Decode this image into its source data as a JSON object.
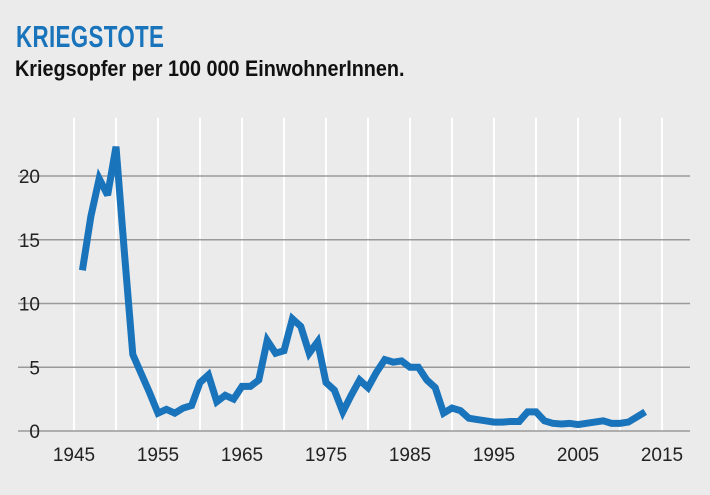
{
  "chart_data": {
    "type": "line",
    "title": "KRIEGSTOTE",
    "subtitle": "Kriegsopfer per 100 000 EinwohnerInnen.",
    "xlabel": "",
    "ylabel": "",
    "xlim": [
      1945,
      2020
    ],
    "ylim": [
      0,
      23
    ],
    "x_ticks": [
      1945,
      1955,
      1965,
      1975,
      1985,
      1995,
      2005,
      2015
    ],
    "y_ticks": [
      0,
      5,
      10,
      15,
      20
    ],
    "grid": true,
    "line_color": "#1a74bb",
    "x": [
      1946,
      1947,
      1948,
      1949,
      1950,
      1951,
      1952,
      1953,
      1954,
      1955,
      1956,
      1957,
      1958,
      1959,
      1960,
      1961,
      1962,
      1963,
      1964,
      1965,
      1966,
      1967,
      1968,
      1969,
      1970,
      1971,
      1972,
      1973,
      1974,
      1975,
      1976,
      1977,
      1978,
      1979,
      1980,
      1981,
      1982,
      1983,
      1984,
      1985,
      1986,
      1987,
      1988,
      1989,
      1990,
      1991,
      1992,
      1993,
      1994,
      1995,
      1996,
      1997,
      1998,
      1999,
      2000,
      2001,
      2002,
      2003,
      2004,
      2005,
      2006,
      2007,
      2008,
      2009,
      2010,
      2011,
      2012,
      2013
    ],
    "y": [
      12.6,
      16.8,
      19.8,
      18.5,
      22.3,
      14.0,
      6.0,
      4.5,
      3.0,
      1.4,
      1.7,
      1.4,
      1.8,
      2.0,
      3.8,
      4.4,
      2.3,
      2.8,
      2.5,
      3.5,
      3.5,
      4.0,
      7.1,
      6.1,
      6.3,
      8.8,
      8.2,
      6.1,
      7.0,
      3.8,
      3.2,
      1.5,
      2.8,
      4.0,
      3.4,
      4.6,
      5.6,
      5.4,
      5.5,
      5.0,
      5.0,
      4.0,
      3.4,
      1.4,
      1.8,
      1.6,
      1.0,
      0.9,
      0.8,
      0.7,
      0.7,
      0.75,
      0.75,
      1.5,
      1.5,
      0.8,
      0.6,
      0.55,
      0.6,
      0.5,
      0.6,
      0.7,
      0.8,
      0.6,
      0.6,
      0.7,
      1.1,
      1.5
    ]
  }
}
